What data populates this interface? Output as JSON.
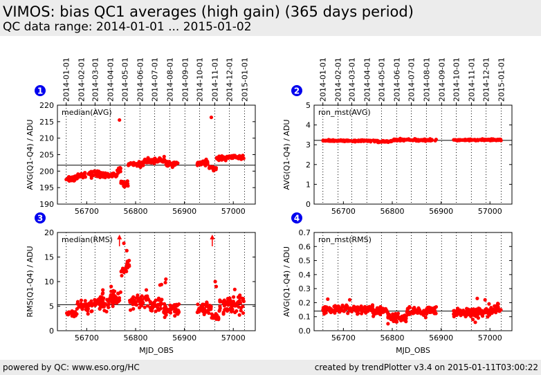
{
  "header": {
    "title": "VIMOS: bias QC1 averages (high gain) (365 days period)",
    "subtitle": "QC data range: 2014-01-01 ... 2015-01-02"
  },
  "footer": {
    "left": "powered by QC: www.eso.org/HC",
    "right": "created by trendPlotter v3.4 on 2015-01-11T03:00:22"
  },
  "colors": {
    "marker": "#ff0000",
    "badge": "#0000ee",
    "reference_line": "#000000"
  },
  "date_ticks": {
    "labels": [
      "2014-01-01",
      "2014-02-01",
      "2014-03-01",
      "2014-04-01",
      "2014-05-01",
      "2014-06-01",
      "2014-07-01",
      "2014-08-01",
      "2014-09-01",
      "2014-10-01",
      "2014-11-01",
      "2014-12-01",
      "2015-01-01"
    ],
    "mjd": [
      56658,
      56689,
      56717,
      56748,
      56778,
      56809,
      56839,
      56870,
      56901,
      56931,
      56962,
      56992,
      57023
    ]
  },
  "chart_data": [
    {
      "type": "scatter",
      "badge": "1",
      "label": "median(AVG)",
      "xlabel": "",
      "ylabel": "AVG(Q1-Q4) / ADU",
      "xlim": [
        56640,
        57045
      ],
      "ylim": [
        190,
        220
      ],
      "xticks": [
        56700,
        56800,
        56900,
        57000
      ],
      "yticks": [
        190,
        195,
        200,
        205,
        210,
        215,
        220
      ],
      "reference": 201.8,
      "outliers": [
        [
          56767,
          215.5
        ],
        [
          56955,
          216.3
        ]
      ],
      "segments": [
        {
          "x": [
            56658,
            56678
          ],
          "y": [
            197.6,
            197.9
          ],
          "s": 0.8
        },
        {
          "x": [
            56680,
            56698
          ],
          "y": [
            198.5,
            199.1
          ],
          "s": 0.8
        },
        {
          "x": [
            56700,
            56728
          ],
          "y": [
            199.0,
            199.2
          ],
          "s": 0.8
        },
        {
          "x": [
            56730,
            56762
          ],
          "y": [
            198.6,
            198.9
          ],
          "s": 0.7
        },
        {
          "x": [
            56762,
            56770
          ],
          "y": [
            199.6,
            200.8
          ],
          "s": 0.6
        },
        {
          "x": [
            56770,
            56785
          ],
          "y": [
            196.5,
            196.0
          ],
          "s": 0.9
        },
        {
          "x": [
            56785,
            56815
          ],
          "y": [
            202.3,
            202.0
          ],
          "s": 0.6
        },
        {
          "x": [
            56815,
            56862
          ],
          "y": [
            203.0,
            203.4
          ],
          "s": 0.6
        },
        {
          "x": [
            56862,
            56888
          ],
          "y": [
            202.0,
            202.2
          ],
          "s": 0.6
        },
        {
          "x": [
            56925,
            56948
          ],
          "y": [
            202.3,
            202.6
          ],
          "s": 0.6
        },
        {
          "x": [
            56950,
            56966
          ],
          "y": [
            201.2,
            200.6
          ],
          "s": 0.4
        },
        {
          "x": [
            56966,
            57023
          ],
          "y": [
            203.8,
            204.3
          ],
          "s": 0.5
        }
      ]
    },
    {
      "type": "scatter",
      "badge": "2",
      "label": "ron_mst(AVG)",
      "xlabel": "",
      "ylabel": "AVG(Q1-Q4) / ADU",
      "xlim": [
        56640,
        57045
      ],
      "ylim": [
        0,
        5
      ],
      "xticks": [
        56700,
        56800,
        56900,
        57000
      ],
      "yticks": [
        0,
        1,
        2,
        3,
        4,
        5
      ],
      "reference": 3.22,
      "outliers": [],
      "segments": [
        {
          "x": [
            56658,
            56770
          ],
          "y": [
            3.2,
            3.2
          ],
          "s": 0.03
        },
        {
          "x": [
            56770,
            56800
          ],
          "y": [
            3.15,
            3.18
          ],
          "s": 0.03
        },
        {
          "x": [
            56800,
            56890
          ],
          "y": [
            3.24,
            3.24
          ],
          "s": 0.04
        },
        {
          "x": [
            56925,
            57023
          ],
          "y": [
            3.24,
            3.25
          ],
          "s": 0.03
        }
      ]
    },
    {
      "type": "scatter",
      "badge": "3",
      "label": "median(RMS)",
      "xlabel": "MJD_OBS",
      "ylabel": "RMS(Q1-Q4) / ADU",
      "xlim": [
        56640,
        57045
      ],
      "ylim": [
        0,
        20
      ],
      "xticks": [
        56700,
        56800,
        56900,
        57000
      ],
      "yticks": [
        0,
        5,
        10,
        15,
        20
      ],
      "reference": 5.3,
      "offscale_arrows": [
        56767,
        56957
      ],
      "outliers": [
        [
          56776,
          17.8
        ],
        [
          56782,
          16.3
        ],
        [
          56733,
          8.3
        ],
        [
          56750,
          9.0
        ],
        [
          56750,
          8.0
        ],
        [
          56862,
          10.5
        ],
        [
          56861,
          9.8
        ],
        [
          56850,
          9.3
        ],
        [
          56963,
          10.0
        ],
        [
          56965,
          9.0
        ],
        [
          57003,
          8.4
        ],
        [
          57014,
          6.8
        ],
        [
          56822,
          8.3
        ],
        [
          56853,
          9.4
        ]
      ],
      "segments": [
        {
          "x": [
            56658,
            56672
          ],
          "y": [
            3.8,
            3.6
          ],
          "s": 0.6
        },
        {
          "x": [
            56672,
            56680
          ],
          "y": [
            3.2,
            3.5
          ],
          "s": 0.5
        },
        {
          "x": [
            56680,
            56712
          ],
          "y": [
            5.0,
            5.2
          ],
          "s": 1.0
        },
        {
          "x": [
            56712,
            56745
          ],
          "y": [
            5.5,
            6.0
          ],
          "s": 1.3
        },
        {
          "x": [
            56745,
            56770
          ],
          "y": [
            6.2,
            7.0
          ],
          "s": 1.3
        },
        {
          "x": [
            56770,
            56788
          ],
          "y": [
            11.8,
            13.5
          ],
          "s": 1.3
        },
        {
          "x": [
            56788,
            56830
          ],
          "y": [
            5.5,
            5.8
          ],
          "s": 1.2
        },
        {
          "x": [
            56830,
            56855
          ],
          "y": [
            5.0,
            5.5
          ],
          "s": 1.3
        },
        {
          "x": [
            56855,
            56890
          ],
          "y": [
            4.0,
            4.5
          ],
          "s": 1.1
        },
        {
          "x": [
            56925,
            56955
          ],
          "y": [
            4.3,
            4.5
          ],
          "s": 1.0
        },
        {
          "x": [
            56955,
            56970
          ],
          "y": [
            3.0,
            2.6
          ],
          "s": 0.5
        },
        {
          "x": [
            56970,
            57023
          ],
          "y": [
            5.0,
            5.5
          ],
          "s": 1.4
        }
      ]
    },
    {
      "type": "scatter",
      "badge": "4",
      "label": "ron_mst(RMS)",
      "xlabel": "MJD_OBS",
      "ylabel": "AVG(Q1-Q4) / ADU",
      "xlim": [
        56640,
        57045
      ],
      "ylim": [
        0,
        0.7
      ],
      "xticks": [
        56700,
        56800,
        56900,
        57000
      ],
      "yticks": [
        0.0,
        0.1,
        0.2,
        0.3,
        0.4,
        0.5,
        0.6,
        0.7
      ],
      "reference": 0.14,
      "outliers": [
        [
          56668,
          0.225
        ],
        [
          56713,
          0.22
        ],
        [
          56777,
          0.16
        ],
        [
          56836,
          0.165
        ],
        [
          56974,
          0.23
        ],
        [
          56990,
          0.22
        ],
        [
          56970,
          0.06
        ],
        [
          56965,
          0.08
        ]
      ],
      "segments": [
        {
          "x": [
            56658,
            56760
          ],
          "y": [
            0.15,
            0.155
          ],
          "s": 0.022
        },
        {
          "x": [
            56760,
            56790
          ],
          "y": [
            0.14,
            0.145
          ],
          "s": 0.022
        },
        {
          "x": [
            56790,
            56830
          ],
          "y": [
            0.1,
            0.09
          ],
          "s": 0.025
        },
        {
          "x": [
            56830,
            56890
          ],
          "y": [
            0.135,
            0.14
          ],
          "s": 0.025
        },
        {
          "x": [
            56925,
            56960
          ],
          "y": [
            0.125,
            0.14
          ],
          "s": 0.025
        },
        {
          "x": [
            56960,
            57023
          ],
          "y": [
            0.13,
            0.15
          ],
          "s": 0.03
        }
      ]
    }
  ]
}
